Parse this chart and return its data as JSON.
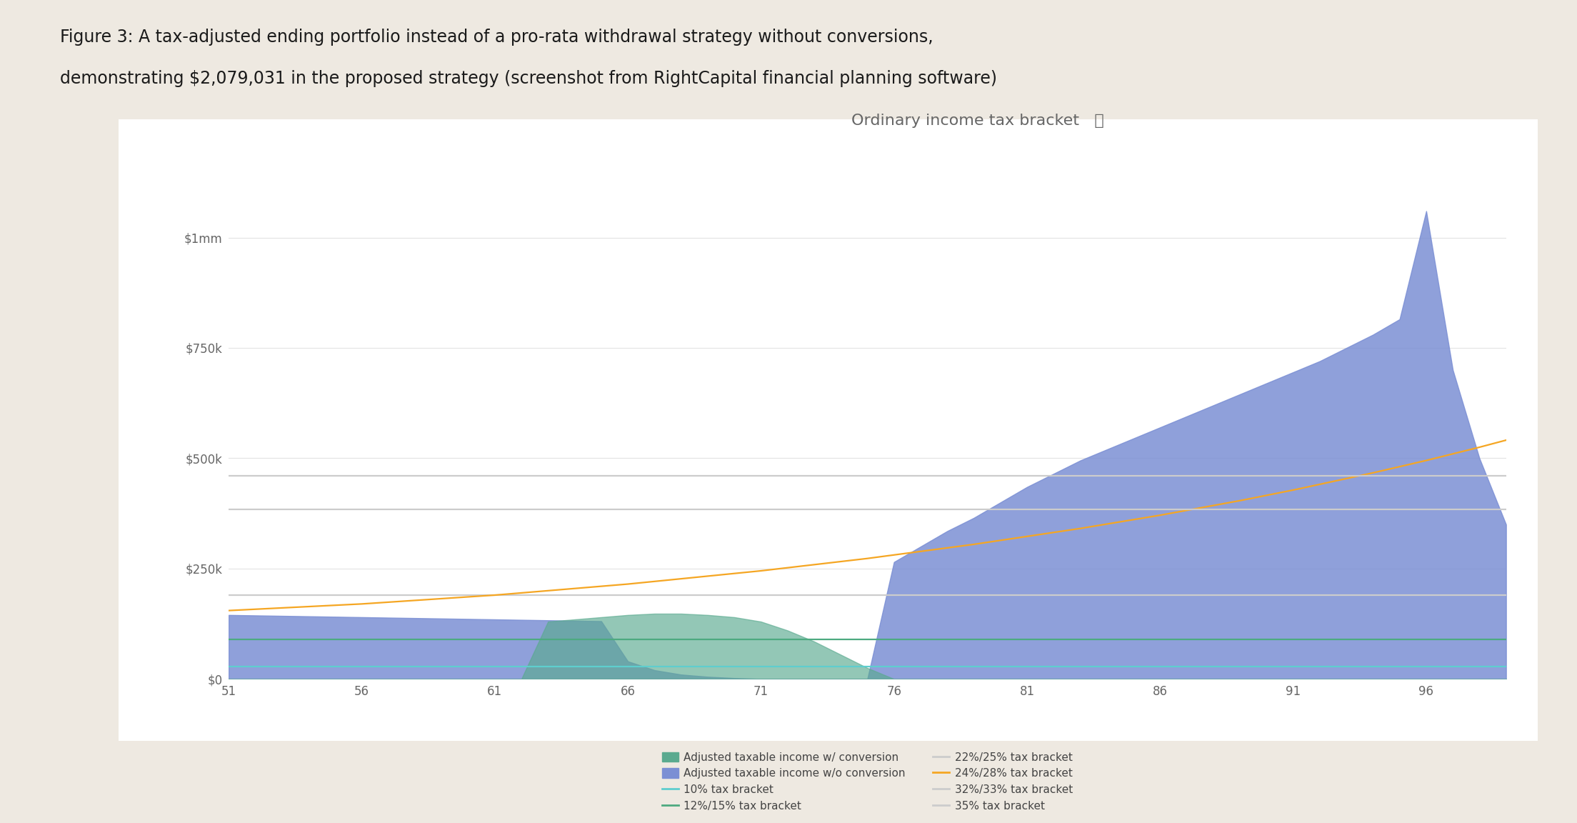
{
  "title": "Ordinary income tax bracket",
  "title_fontsize": 16,
  "background_color": "#eee9e1",
  "chart_bg": "#ffffff",
  "figure_title_line1": "Figure 3: A tax-adjusted ending portfolio instead of a pro-rata withdrawal strategy without conversions,",
  "figure_title_line2": "demonstrating $2,079,031 in the proposed strategy (screenshot from RightCapital financial planning software)",
  "figure_title_fontsize": 17,
  "yticks": [
    0,
    250000,
    500000,
    750000,
    1000000
  ],
  "ytick_labels": [
    "$0",
    "$250k",
    "$500k",
    "$750k",
    "$1mm"
  ],
  "xticks": [
    51,
    56,
    61,
    66,
    71,
    76,
    81,
    86,
    91,
    96
  ],
  "blue_fill_color": "#7b8fd4",
  "blue_fill_alpha": 0.85,
  "green_fill_color": "#5aaa8f",
  "green_fill_alpha": 0.65,
  "bracket_10_color": "#5ecece",
  "bracket_12_color": "#4daa80",
  "bracket_22_color": "#cccccc",
  "bracket_24_color": "#f5a623",
  "bracket_32_color": "#cccccc",
  "bracket_35_color": "#cccccc",
  "ages": [
    51,
    52,
    53,
    54,
    55,
    56,
    57,
    58,
    59,
    60,
    61,
    62,
    63,
    64,
    65,
    66,
    67,
    68,
    69,
    70,
    71,
    72,
    73,
    74,
    75,
    76,
    77,
    78,
    79,
    80,
    81,
    82,
    83,
    84,
    85,
    86,
    87,
    88,
    89,
    90,
    91,
    92,
    93,
    94,
    95,
    96,
    97,
    98,
    99
  ],
  "blue_wo_conversion": [
    145000,
    144000,
    143000,
    142000,
    141000,
    140000,
    139000,
    138000,
    137000,
    136000,
    135000,
    134000,
    133000,
    132000,
    131000,
    40000,
    20000,
    10000,
    5000,
    2000,
    0,
    0,
    0,
    0,
    0,
    265000,
    300000,
    335000,
    365000,
    400000,
    435000,
    465000,
    495000,
    520000,
    545000,
    570000,
    595000,
    620000,
    645000,
    670000,
    695000,
    720000,
    750000,
    780000,
    815000,
    1060000,
    700000,
    500000,
    350000
  ],
  "green_w_conversion": [
    0,
    0,
    0,
    0,
    0,
    0,
    0,
    0,
    0,
    0,
    0,
    0,
    130000,
    135000,
    140000,
    145000,
    148000,
    148000,
    145000,
    140000,
    130000,
    110000,
    85000,
    55000,
    25000,
    0,
    0,
    0,
    0,
    0,
    0,
    0,
    0,
    0,
    0,
    0,
    0,
    0,
    0,
    0,
    0,
    0,
    0,
    0,
    0,
    0,
    0,
    0,
    0
  ],
  "bracket_10": [
    27900,
    27900,
    27900,
    27900,
    27900,
    27900,
    27900,
    27900,
    27900,
    27900,
    27900,
    27900,
    27900,
    27900,
    27900,
    27900,
    27900,
    27900,
    27900,
    27900,
    27900,
    27900,
    27900,
    27900,
    27900,
    27900,
    27900,
    27900,
    27900,
    27900,
    27900,
    27900,
    27900,
    27900,
    27900,
    27900,
    27900,
    27900,
    27900,
    27900,
    27900,
    27900,
    27900,
    27900,
    27900,
    27900,
    27900,
    27900,
    27900
  ],
  "bracket_12": [
    89250,
    89250,
    89250,
    89250,
    89250,
    89250,
    89250,
    89250,
    89250,
    89250,
    89250,
    89250,
    89250,
    89250,
    89250,
    89250,
    89250,
    89250,
    89250,
    89250,
    89250,
    89250,
    89250,
    89250,
    89250,
    89250,
    89250,
    89250,
    89250,
    89250,
    89250,
    89250,
    89250,
    89250,
    89250,
    89250,
    89250,
    89250,
    89250,
    89250,
    89250,
    89250,
    89250,
    89250,
    89250,
    89250,
    89250,
    89250,
    89250
  ],
  "bracket_22": [
    189450,
    189450,
    189450,
    189450,
    189450,
    189450,
    189450,
    189450,
    189450,
    189450,
    189450,
    189450,
    189450,
    189450,
    189450,
    189450,
    189450,
    189450,
    189450,
    189450,
    189450,
    189450,
    189450,
    189450,
    189450,
    189450,
    189450,
    189450,
    189450,
    189450,
    189450,
    189450,
    189450,
    189450,
    189450,
    189450,
    189450,
    189450,
    189450,
    189450,
    189450,
    189450,
    189450,
    189450,
    189450,
    189450,
    189450,
    189450,
    189450
  ],
  "bracket_24": [
    155000,
    158000,
    161000,
    164000,
    167000,
    170000,
    174000,
    178000,
    182000,
    186000,
    190000,
    195000,
    200000,
    205000,
    210000,
    215000,
    221000,
    227000,
    233000,
    239000,
    245000,
    252000,
    259000,
    266000,
    273000,
    281000,
    289000,
    297000,
    305000,
    314000,
    323000,
    332000,
    341000,
    351000,
    361000,
    371000,
    382000,
    393000,
    404000,
    416000,
    428000,
    441000,
    454000,
    467000,
    481000,
    495000,
    510000,
    525000,
    541000
  ],
  "bracket_32": [
    383450,
    383450,
    383450,
    383450,
    383450,
    383450,
    383450,
    383450,
    383450,
    383450,
    383450,
    383450,
    383450,
    383450,
    383450,
    383450,
    383450,
    383450,
    383450,
    383450,
    383450,
    383450,
    383450,
    383450,
    383450,
    383450,
    383450,
    383450,
    383450,
    383450,
    383450,
    383450,
    383450,
    383450,
    383450,
    383450,
    383450,
    383450,
    383450,
    383450,
    383450,
    383450,
    383450,
    383450,
    383450,
    383450,
    383450,
    383450,
    383450
  ],
  "bracket_35": [
    459750,
    459750,
    459750,
    459750,
    459750,
    459750,
    459750,
    459750,
    459750,
    459750,
    459750,
    459750,
    459750,
    459750,
    459750,
    459750,
    459750,
    459750,
    459750,
    459750,
    459750,
    459750,
    459750,
    459750,
    459750,
    459750,
    459750,
    459750,
    459750,
    459750,
    459750,
    459750,
    459750,
    459750,
    459750,
    459750,
    459750,
    459750,
    459750,
    459750,
    459750,
    459750,
    459750,
    459750,
    459750,
    459750,
    459750,
    459750,
    459750
  ],
  "legend_items_left": [
    {
      "label": "Adjusted taxable income w/ conversion",
      "type": "dot",
      "color": "#5aaa8f"
    },
    {
      "label": "10% tax bracket",
      "type": "line",
      "color": "#5ecece"
    },
    {
      "label": "22%/25% tax bracket",
      "type": "line",
      "color": "#cccccc"
    },
    {
      "label": "32%/33% tax bracket",
      "type": "line",
      "color": "#cccccc"
    }
  ],
  "legend_items_right": [
    {
      "label": "Adjusted taxable income w/o conversion",
      "type": "dot",
      "color": "#7b8fd4"
    },
    {
      "label": "12%/15% tax bracket",
      "type": "line",
      "color": "#4daa80"
    },
    {
      "label": "24%/28% tax bracket",
      "type": "line",
      "color": "#f5a623"
    },
    {
      "label": "35% tax bracket",
      "type": "line",
      "color": "#cccccc"
    }
  ]
}
